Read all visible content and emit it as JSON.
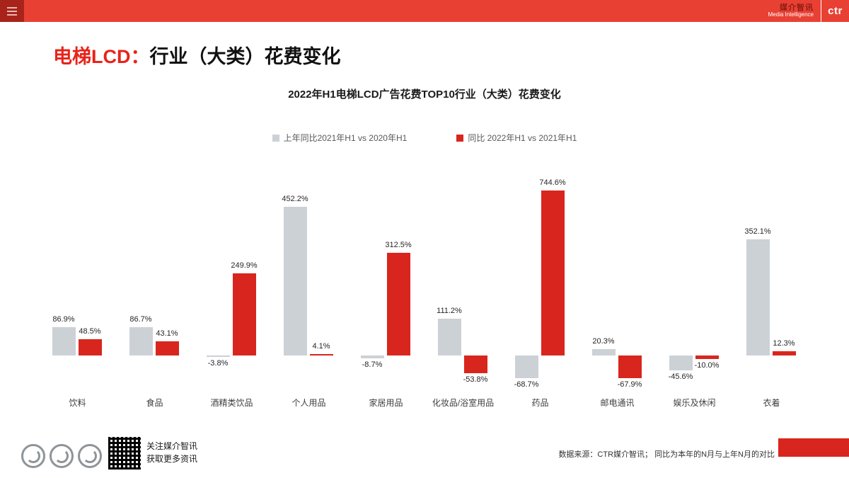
{
  "topbar": {
    "brand_cn": "媒介智讯",
    "brand_en": "Media Intelligence",
    "logo": "ctr"
  },
  "page_title": {
    "prefix": "电梯LCD：",
    "rest": "行业（大类）花费变化"
  },
  "chart_data": {
    "type": "bar",
    "title": "2022年H1电梯LCD广告花费TOP10行业（大类）花费变化",
    "categories": [
      "饮料",
      "食品",
      "酒精类饮品",
      "个人用品",
      "家居用品",
      "化妆品/浴室用品",
      "药品",
      "邮电通讯",
      "娱乐及休闲",
      "衣着"
    ],
    "series": [
      {
        "name": "上年同比2021年H1 vs 2020年H1",
        "color": "#ccd1d6",
        "values": [
          86.9,
          86.7,
          -3.8,
          452.2,
          -8.7,
          111.2,
          -68.7,
          20.3,
          -45.6,
          352.1
        ]
      },
      {
        "name": "同比 2022年H1  vs 2021年H1",
        "color": "#d8261e",
        "values": [
          48.5,
          43.1,
          249.9,
          4.1,
          312.5,
          -53.8,
          744.6,
          -67.9,
          -10.0,
          12.3
        ]
      }
    ],
    "value_suffix": "%",
    "ylim": [
      -100,
      800
    ],
    "grid": false,
    "legend_position": "top"
  },
  "footer": {
    "follow_line1": "关注媒介智讯",
    "follow_line2": "获取更多资讯",
    "source_label": "数据来源：CTR媒介智讯；",
    "source_note": "同比为本年的N月与上年N月的对比"
  },
  "colors": {
    "topbar": "#e94034",
    "accent_red": "#d8261e",
    "bar_gray": "#ccd1d6",
    "title_red": "#e8231a"
  }
}
